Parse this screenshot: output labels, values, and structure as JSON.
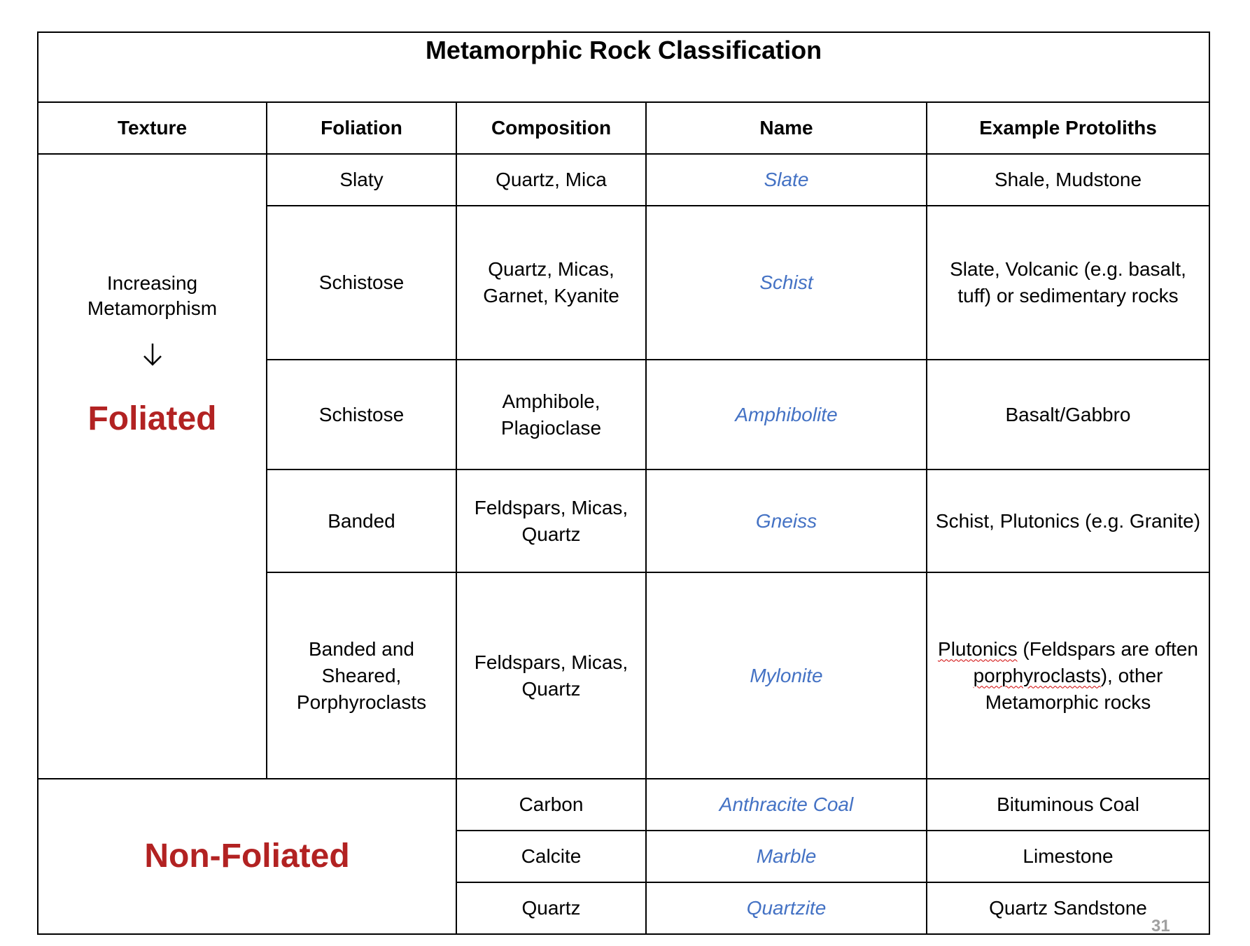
{
  "title": "Metamorphic Rock Classification",
  "headers": {
    "texture": "Texture",
    "foliation": "Foliation",
    "composition": "Composition",
    "name": "Name",
    "protoliths": "Example Protoliths"
  },
  "foliated": {
    "note_line1": "Increasing",
    "note_line2": "Metamorphism",
    "arrow_icon": "arrow-down-icon",
    "label": "Foliated",
    "rows": [
      {
        "foliation": "Slaty",
        "composition": "Quartz, Mica",
        "name": "Slate",
        "protoliths": "Shale, Mudstone"
      },
      {
        "foliation": "Schistose",
        "composition": "Quartz, Micas, Garnet, Kyanite",
        "name": "Schist",
        "protoliths": "Slate, Volcanic (e.g. basalt, tuff) or sedimentary rocks"
      },
      {
        "foliation": "Schistose",
        "composition": "Amphibole, Plagioclase",
        "name": "Amphibolite",
        "protoliths": "Basalt/Gabbro"
      },
      {
        "foliation": "Banded",
        "composition": "Feldspars, Micas, Quartz",
        "name": "Gneiss",
        "protoliths": "Schist, Plutonics (e.g. Granite)"
      },
      {
        "foliation": "Banded and Sheared, Porphyroclasts",
        "composition": "Feldspars, Micas, Quartz",
        "name": "Mylonite",
        "protoliths_word1": "Plutonics",
        "protoliths_part2": " (Feldspars are often ",
        "protoliths_word2": "porphyroclasts",
        "protoliths_part3": "), other Metamorphic rocks"
      }
    ]
  },
  "non_foliated": {
    "label": "Non-Foliated",
    "rows": [
      {
        "composition": "Carbon",
        "name": "Anthracite Coal",
        "protoliths": "Bituminous Coal"
      },
      {
        "composition": "Calcite",
        "name": "Marble",
        "protoliths": "Limestone"
      },
      {
        "composition": "Quartz",
        "name": "Quartzite",
        "protoliths": "Quartz Sandstone"
      }
    ]
  },
  "page_number": "31",
  "colors": {
    "rock_name": "#4472c4",
    "texture_label": "#b22222",
    "spellcheck": "#d00000"
  }
}
